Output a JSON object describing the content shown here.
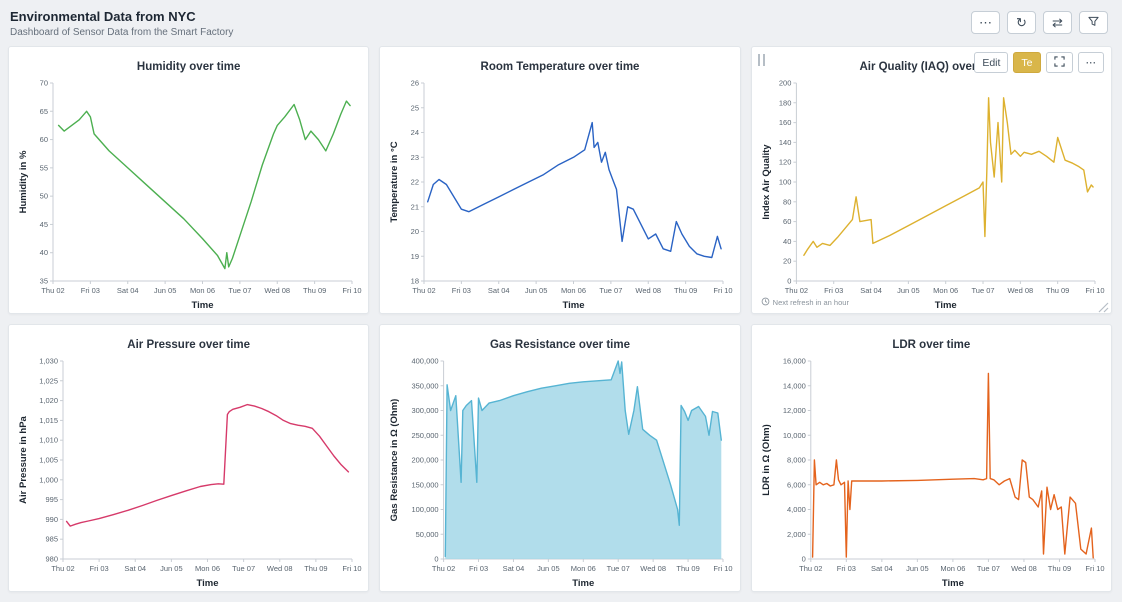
{
  "header": {
    "title": "Environmental Data from NYC",
    "subtitle": "Dashboard of Sensor Data from the Smart Factory",
    "toolbar": {
      "more_icon": "⋯",
      "refresh_icon": "↻",
      "resize_icon": "⇄",
      "filter_icon": "funnel-icon"
    }
  },
  "active_panel": {
    "edit_label": "Edit",
    "te_label": "Te",
    "more_icon": "⋯",
    "refresh_note": "Next refresh in an hour"
  },
  "chart_data": [
    {
      "type": "line",
      "title": "Humidity over time",
      "xlabel": "Time",
      "ylabel": "Humidity in %",
      "color": "#4caf50",
      "ylim": [
        35,
        70
      ],
      "ytick_step": 5,
      "xlim": [
        0,
        8
      ],
      "x_tick_labels": [
        "Thu 02",
        "Fri 03",
        "Sat 04",
        "Jun 05",
        "Mon 06",
        "Tue 07",
        "Wed 08",
        "Thu 09",
        "Fri 10"
      ],
      "grid": false,
      "legend": false,
      "x": [
        0.15,
        0.3,
        0.5,
        0.7,
        0.9,
        1.0,
        1.1,
        1.5,
        2.0,
        2.5,
        3.0,
        3.5,
        4.0,
        4.4,
        4.6,
        4.65,
        4.7,
        4.8,
        5.0,
        5.3,
        5.6,
        5.9,
        6.0,
        6.2,
        6.45,
        6.6,
        6.75,
        6.9,
        7.1,
        7.3,
        7.5,
        7.7,
        7.85,
        7.95
      ],
      "y": [
        62.5,
        61.5,
        62.5,
        63.5,
        65,
        64,
        61,
        58,
        55,
        52,
        49,
        46,
        42.5,
        39.5,
        37.2,
        40,
        37.5,
        39,
        43,
        49,
        55.5,
        61,
        62.5,
        64,
        66.2,
        63.5,
        60,
        61.5,
        60,
        58,
        61,
        64.5,
        66.8,
        66
      ]
    },
    {
      "type": "line",
      "title": "Room Temperature over time",
      "xlabel": "Time",
      "ylabel": "Temperature in °C",
      "color": "#2a63c4",
      "ylim": [
        18,
        26
      ],
      "ytick_step": 1,
      "xlim": [
        0,
        8
      ],
      "x_tick_labels": [
        "Thu 02",
        "Fri 03",
        "Sat 04",
        "Jun 05",
        "Mon 06",
        "Tue 07",
        "Wed 08",
        "Thu 09",
        "Fri 10"
      ],
      "grid": false,
      "legend": false,
      "x": [
        0.1,
        0.25,
        0.4,
        0.6,
        0.8,
        1.0,
        1.2,
        1.6,
        2.0,
        2.4,
        2.8,
        3.2,
        3.6,
        4.0,
        4.3,
        4.5,
        4.55,
        4.65,
        4.75,
        4.85,
        4.95,
        5.05,
        5.15,
        5.3,
        5.45,
        5.6,
        5.8,
        6.0,
        6.2,
        6.4,
        6.6,
        6.75,
        6.9,
        7.1,
        7.3,
        7.5,
        7.7,
        7.85,
        7.95
      ],
      "y": [
        21.2,
        21.9,
        22.1,
        21.9,
        21.4,
        20.9,
        20.8,
        21.1,
        21.4,
        21.7,
        22.0,
        22.3,
        22.7,
        23.0,
        23.3,
        24.4,
        23.4,
        23.6,
        22.8,
        23.2,
        22.5,
        22.1,
        21.7,
        19.6,
        21.0,
        20.9,
        20.3,
        19.7,
        19.9,
        19.3,
        19.2,
        20.4,
        19.9,
        19.4,
        19.1,
        19.0,
        18.95,
        19.8,
        19.3
      ]
    },
    {
      "type": "line",
      "title": "Air Quality (IAQ) over time",
      "xlabel": "Time",
      "ylabel": "Index Air Quality",
      "color": "#ddb12f",
      "ylim": [
        0,
        200
      ],
      "ytick_step": 20,
      "xlim": [
        0,
        8
      ],
      "x_tick_labels": [
        "Thu 02",
        "Fri 03",
        "Sat 04",
        "Jun 05",
        "Mon 06",
        "Tue 07",
        "Wed 08",
        "Thu 09",
        "Fri 10"
      ],
      "grid": false,
      "legend": false,
      "x": [
        0.2,
        0.3,
        0.45,
        0.55,
        0.7,
        0.9,
        1.1,
        1.5,
        1.6,
        1.7,
        2.0,
        2.05,
        2.5,
        3.0,
        3.5,
        4.0,
        4.5,
        4.9,
        5.0,
        5.05,
        5.1,
        5.15,
        5.2,
        5.3,
        5.4,
        5.5,
        5.55,
        5.65,
        5.75,
        5.85,
        6.0,
        6.1,
        6.3,
        6.5,
        6.7,
        6.9,
        7.0,
        7.2,
        7.4,
        7.55,
        7.7,
        7.8,
        7.9,
        7.95
      ],
      "y": [
        26,
        32,
        40,
        34,
        38,
        36,
        44,
        62,
        85,
        60,
        62,
        38,
        46,
        56,
        66,
        76,
        86,
        94,
        100,
        45,
        110,
        185,
        140,
        105,
        160,
        100,
        185,
        160,
        128,
        132,
        126,
        130,
        128,
        131,
        126,
        120,
        145,
        122,
        119,
        116,
        112,
        90,
        97,
        95
      ]
    },
    {
      "type": "line",
      "title": "Air Pressure over time",
      "xlabel": "Time",
      "ylabel": "Air Pressure in hPa",
      "color": "#d63a6a",
      "ylim": [
        980,
        1030
      ],
      "ytick_step": 5,
      "xlim": [
        0,
        8
      ],
      "x_tick_labels": [
        "Thu 02",
        "Fri 03",
        "Sat 04",
        "Jun 05",
        "Mon 06",
        "Tue 07",
        "Wed 08",
        "Thu 09",
        "Fri 10"
      ],
      "grid": false,
      "legend": false,
      "x": [
        0.1,
        0.2,
        0.35,
        0.5,
        0.7,
        1.0,
        1.4,
        1.8,
        2.2,
        2.6,
        3.0,
        3.4,
        3.8,
        4.1,
        4.3,
        4.45,
        4.55,
        4.6,
        4.7,
        4.9,
        5.1,
        5.3,
        5.5,
        5.7,
        5.9,
        6.1,
        6.3,
        6.5,
        6.7,
        6.9,
        7.1,
        7.3,
        7.5,
        7.7,
        7.9
      ],
      "y": [
        989.5,
        988.3,
        988.8,
        989.2,
        989.6,
        990.2,
        991.2,
        992.3,
        993.5,
        994.8,
        996.0,
        997.2,
        998.3,
        998.8,
        999.0,
        998.9,
        1016.5,
        1017.2,
        1017.8,
        1018.3,
        1019.0,
        1018.6,
        1018.0,
        1017.2,
        1016.2,
        1015.0,
        1014.2,
        1013.8,
        1013.5,
        1013.0,
        1011.0,
        1008.5,
        1006.0,
        1003.8,
        1002.0
      ]
    },
    {
      "type": "area",
      "title": "Gas Resistance over time",
      "xlabel": "Time",
      "ylabel": "Gas Resistance in Ω (Ohm)",
      "color": "#56b4d3",
      "fill": "#a3d7e8",
      "ylim": [
        0,
        400000
      ],
      "ytick_step": 50000,
      "xlim": [
        0,
        8
      ],
      "x_tick_labels": [
        "Thu 02",
        "Fri 03",
        "Sat 04",
        "Jun 05",
        "Mon 06",
        "Tue 07",
        "Wed 08",
        "Thu 09",
        "Fri 10"
      ],
      "grid": false,
      "legend": false,
      "x": [
        0.05,
        0.1,
        0.2,
        0.35,
        0.5,
        0.55,
        0.65,
        0.8,
        0.95,
        1.0,
        1.1,
        1.3,
        1.6,
        2.0,
        2.4,
        2.8,
        3.2,
        3.6,
        4.0,
        4.4,
        4.8,
        5.0,
        5.05,
        5.1,
        5.2,
        5.3,
        5.45,
        5.55,
        5.7,
        5.9,
        6.1,
        6.5,
        6.7,
        6.75,
        6.8,
        6.9,
        7.0,
        7.1,
        7.3,
        7.5,
        7.6,
        7.7,
        7.85,
        7.95
      ],
      "y": [
        5000,
        352000,
        300000,
        330000,
        155000,
        300000,
        310000,
        320000,
        155000,
        325000,
        300000,
        315000,
        320000,
        330000,
        338000,
        345000,
        350000,
        355000,
        358000,
        360000,
        362000,
        400000,
        375000,
        398000,
        300000,
        252000,
        300000,
        348000,
        262000,
        250000,
        240000,
        150000,
        100000,
        68000,
        310000,
        298000,
        280000,
        300000,
        308000,
        288000,
        250000,
        298000,
        295000,
        240000
      ]
    },
    {
      "type": "line",
      "title": "LDR over time",
      "xlabel": "Time",
      "ylabel": "LDR in Ω (Ohm)",
      "color": "#e4631d",
      "ylim": [
        0,
        16000
      ],
      "ytick_step": 2000,
      "xlim": [
        0,
        8
      ],
      "x_tick_labels": [
        "Thu 02",
        "Fri 03",
        "Sat 04",
        "Jun 05",
        "Mon 06",
        "Tue 07",
        "Wed 08",
        "Thu 09",
        "Fri 10"
      ],
      "grid": false,
      "legend": false,
      "x": [
        0.05,
        0.1,
        0.15,
        0.25,
        0.35,
        0.45,
        0.55,
        0.65,
        0.72,
        0.78,
        0.85,
        0.95,
        1.0,
        1.05,
        1.1,
        1.15,
        1.25,
        2.0,
        3.0,
        4.0,
        4.6,
        4.85,
        4.95,
        5.0,
        5.05,
        5.15,
        5.3,
        5.45,
        5.6,
        5.75,
        5.85,
        5.95,
        6.05,
        6.15,
        6.25,
        6.4,
        6.5,
        6.55,
        6.65,
        6.75,
        6.85,
        6.95,
        7.05,
        7.15,
        7.3,
        7.45,
        7.6,
        7.75,
        7.9,
        7.95
      ],
      "y": [
        150,
        8000,
        6000,
        6200,
        6000,
        6100,
        5900,
        6000,
        8000,
        6400,
        6000,
        6200,
        150,
        6300,
        4000,
        6300,
        6300,
        6300,
        6350,
        6450,
        6500,
        6400,
        6500,
        15000,
        6500,
        6400,
        6000,
        6300,
        6500,
        5000,
        4800,
        8000,
        7800,
        5000,
        4800,
        4200,
        5500,
        400,
        5800,
        4000,
        5200,
        4000,
        4200,
        400,
        5000,
        4500,
        800,
        400,
        2500,
        100
      ]
    }
  ]
}
